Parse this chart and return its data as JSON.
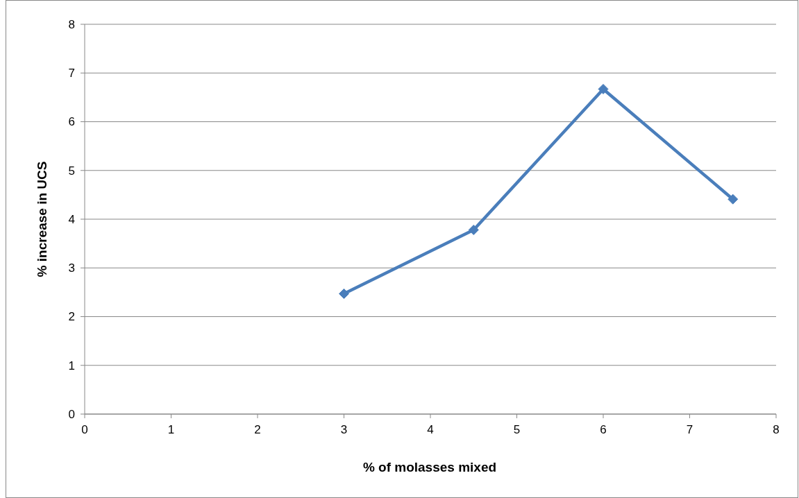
{
  "chart_data": {
    "type": "line",
    "xlabel": "% of molasses mixed",
    "ylabel": "% increase in UCS",
    "x": [
      3,
      4.5,
      6,
      7.5
    ],
    "series": [
      {
        "color": "#4a7ebb",
        "values": [
          2.47,
          3.78,
          6.67,
          4.41
        ]
      }
    ],
    "xlim": [
      0,
      8
    ],
    "xticks": [
      0,
      1,
      2,
      3,
      4,
      5,
      6,
      7,
      8
    ],
    "ylim": [
      0,
      8
    ],
    "yticks": [
      0,
      1,
      2,
      3,
      4,
      5,
      6,
      7,
      8
    ],
    "grid": "y",
    "marker": "diamond",
    "line_style": "solid"
  }
}
